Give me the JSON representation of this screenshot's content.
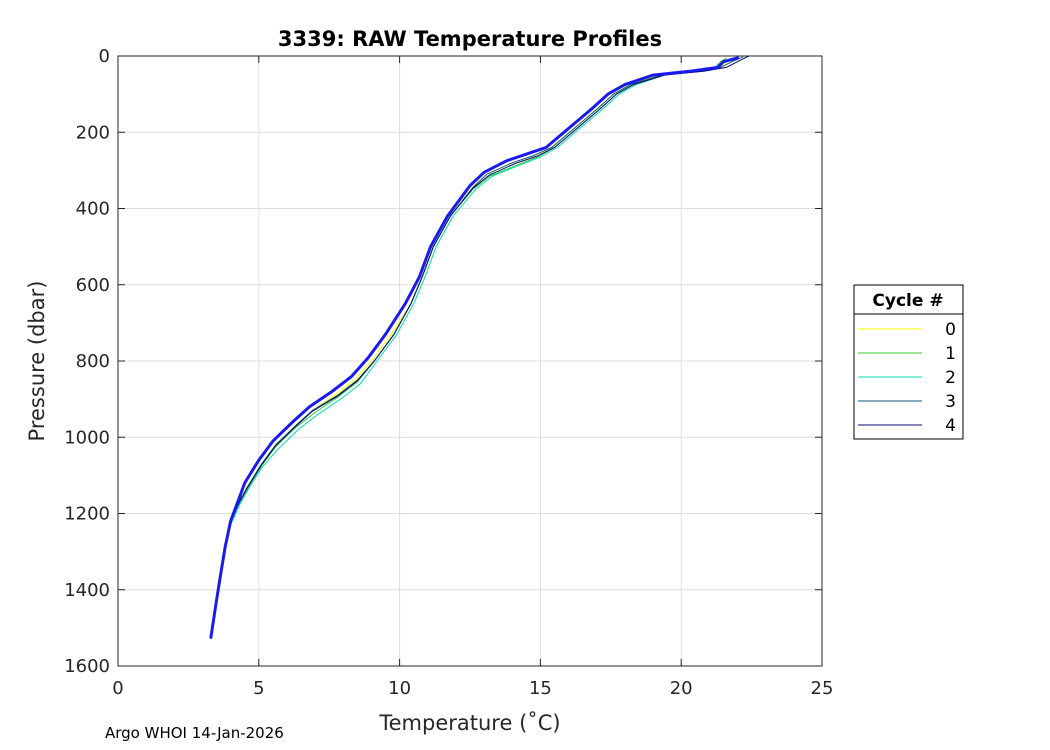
{
  "chart_data": {
    "type": "line",
    "title": "3339: RAW Temperature Profiles",
    "xlabel": "Temperature (˚C)",
    "ylabel": "Pressure (dbar)",
    "xlim": [
      0,
      25
    ],
    "ylim": [
      0,
      1600
    ],
    "y_reversed": true,
    "xticks": [
      0,
      5,
      10,
      15,
      20,
      25
    ],
    "yticks": [
      0,
      200,
      400,
      600,
      800,
      1000,
      1200,
      1400,
      1600
    ],
    "grid": true,
    "legend": {
      "title": "Cycle #",
      "placement": "outside-right"
    },
    "series": [
      {
        "name": "0",
        "color": "#ffff00",
        "x": [
          21.9,
          21.6,
          21.4,
          20.5,
          19.2,
          18.2,
          17.6,
          17.0,
          16.2,
          15.4,
          14.8,
          14.0,
          13.1,
          12.6,
          11.8,
          11.2,
          10.8,
          10.4,
          9.7,
          9.0,
          8.4,
          7.7,
          6.9,
          6.3,
          5.6,
          5.1,
          4.6,
          4.3,
          4.0,
          3.8,
          3.6,
          3.45,
          3.3
        ],
        "y": [
          5,
          15,
          30,
          40,
          50,
          75,
          100,
          140,
          190,
          240,
          260,
          280,
          310,
          345,
          420,
          500,
          580,
          650,
          730,
          800,
          850,
          890,
          930,
          970,
          1020,
          1070,
          1130,
          1170,
          1220,
          1290,
          1380,
          1450,
          1520
        ]
      },
      {
        "name": "1",
        "color": "#33cc33",
        "x": [
          21.6,
          21.4,
          21.2,
          20.5,
          19.3,
          18.3,
          17.7,
          17.1,
          16.3,
          15.5,
          14.9,
          14.2,
          13.2,
          12.6,
          11.8,
          11.2,
          10.8,
          10.4,
          9.8,
          9.1,
          8.5,
          7.8,
          7.0,
          6.3,
          5.6,
          5.1,
          4.6,
          4.3,
          4.0,
          3.8,
          3.6,
          3.45,
          3.3
        ],
        "y": [
          5,
          15,
          30,
          40,
          50,
          75,
          100,
          140,
          190,
          240,
          265,
          285,
          315,
          350,
          420,
          500,
          580,
          650,
          730,
          800,
          855,
          895,
          935,
          975,
          1025,
          1075,
          1135,
          1175,
          1225,
          1290,
          1380,
          1450,
          1520
        ]
      },
      {
        "name": "2",
        "color": "#00e0b0",
        "x": [
          22.0,
          21.5,
          21.2,
          20.6,
          19.4,
          18.4,
          17.8,
          17.2,
          16.4,
          15.6,
          15.0,
          14.3,
          13.3,
          12.7,
          11.9,
          11.3,
          10.9,
          10.5,
          9.9,
          9.2,
          8.6,
          7.9,
          7.1,
          6.4,
          5.7,
          5.1,
          4.6,
          4.3,
          4.0,
          3.8,
          3.6,
          3.45,
          3.3
        ],
        "y": [
          5,
          15,
          30,
          40,
          50,
          75,
          100,
          140,
          190,
          240,
          265,
          285,
          315,
          350,
          420,
          500,
          580,
          650,
          730,
          800,
          860,
          900,
          940,
          980,
          1030,
          1080,
          1140,
          1180,
          1230,
          1295,
          1385,
          1455,
          1525
        ]
      },
      {
        "name": "3",
        "color": "#0a5a7a",
        "x": [
          22.2,
          21.8,
          21.4,
          20.6,
          19.3,
          18.2,
          17.6,
          17.0,
          16.2,
          15.4,
          14.8,
          14.0,
          13.1,
          12.6,
          11.8,
          11.2,
          10.8,
          10.4,
          9.8,
          9.1,
          8.5,
          7.8,
          6.9,
          6.3,
          5.6,
          5.1,
          4.6,
          4.3,
          4.0,
          3.8,
          3.6,
          3.45,
          3.3
        ],
        "y": [
          2,
          15,
          30,
          40,
          50,
          75,
          100,
          140,
          190,
          240,
          260,
          280,
          310,
          345,
          420,
          500,
          580,
          650,
          730,
          800,
          850,
          890,
          930,
          970,
          1020,
          1070,
          1130,
          1170,
          1220,
          1290,
          1380,
          1450,
          1520
        ]
      },
      {
        "name": "4",
        "color": "#0a0a6e",
        "x": [
          22.4,
          22.0,
          21.6,
          20.8,
          19.4,
          18.3,
          17.7,
          17.1,
          16.3,
          15.5,
          14.9,
          14.1,
          13.2,
          12.6,
          11.8,
          11.2,
          10.8,
          10.4,
          9.8,
          9.1,
          8.5,
          7.8,
          6.9,
          6.3,
          5.6,
          5.1,
          4.6,
          4.3,
          4.0,
          3.8,
          3.6,
          3.45,
          3.3
        ],
        "y": [
          0,
          15,
          30,
          40,
          50,
          75,
          100,
          140,
          190,
          240,
          262,
          282,
          312,
          347,
          420,
          500,
          580,
          650,
          730,
          800,
          852,
          892,
          932,
          972,
          1022,
          1072,
          1132,
          1172,
          1222,
          1292,
          1382,
          1452,
          1522
        ]
      }
    ],
    "highlight_series": {
      "color": "#1a1aee",
      "x": [
        22.0,
        21.5,
        21.3,
        20.3,
        19.0,
        18.0,
        17.4,
        16.8,
        16.0,
        15.2,
        14.6,
        13.8,
        13.0,
        12.5,
        11.7,
        11.1,
        10.7,
        10.2,
        9.5,
        8.9,
        8.3,
        7.6,
        6.8,
        6.2,
        5.5,
        5.0,
        4.5,
        4.3,
        4.0,
        3.8,
        3.6,
        3.45,
        3.3
      ],
      "y": [
        5,
        15,
        30,
        40,
        50,
        75,
        100,
        140,
        190,
        240,
        255,
        275,
        305,
        340,
        420,
        500,
        580,
        650,
        730,
        790,
        840,
        880,
        920,
        960,
        1010,
        1060,
        1120,
        1160,
        1220,
        1290,
        1380,
        1450,
        1525
      ]
    }
  },
  "footer": {
    "text": "Argo WHOI 14-Jan-2026"
  }
}
